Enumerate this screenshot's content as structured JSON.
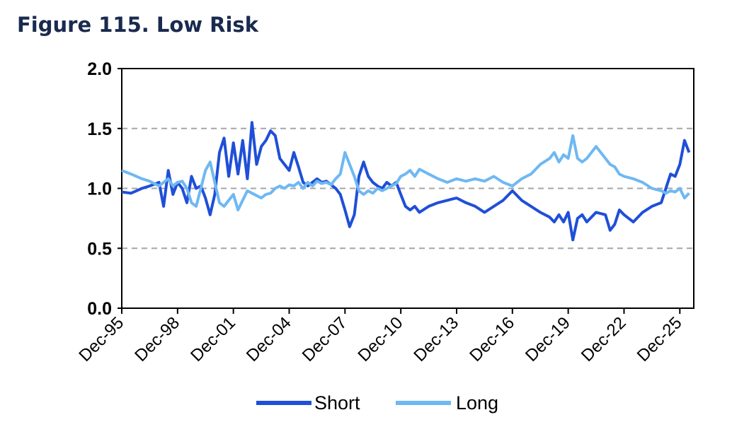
{
  "title": "Figure 115. Low Risk",
  "chart_data": {
    "type": "line",
    "xlabel": "",
    "ylabel": "",
    "xlim": [
      "1995-12",
      "2026-09"
    ],
    "ylim": [
      0,
      2
    ],
    "y_ticks": [
      "0.0",
      "0.5",
      "1.0",
      "1.5",
      "2.0"
    ],
    "x_ticks": [
      "Dec-95",
      "Dec-98",
      "Dec-01",
      "Dec-04",
      "Dec-07",
      "Dec-10",
      "Dec-13",
      "Dec-16",
      "Dec-19",
      "Dec-22",
      "Dec-25"
    ],
    "grid": "horizontal dashed",
    "legend": "bottom",
    "series": [
      {
        "name": "Short",
        "color": "#1f4fd8",
        "points": [
          [
            "1995-12",
            0.97
          ],
          [
            "1996-06",
            0.96
          ],
          [
            "1997-01",
            1.0
          ],
          [
            "1997-06",
            1.02
          ],
          [
            "1997-12",
            1.05
          ],
          [
            "1998-03",
            0.85
          ],
          [
            "1998-06",
            1.15
          ],
          [
            "1998-09",
            0.95
          ],
          [
            "1998-12",
            1.05
          ],
          [
            "1999-03",
            1.0
          ],
          [
            "1999-06",
            0.88
          ],
          [
            "1999-09",
            1.1
          ],
          [
            "1999-12",
            1.0
          ],
          [
            "2000-03",
            1.02
          ],
          [
            "2000-06",
            0.92
          ],
          [
            "2000-09",
            0.78
          ],
          [
            "2000-12",
            0.95
          ],
          [
            "2001-03",
            1.3
          ],
          [
            "2001-06",
            1.42
          ],
          [
            "2001-09",
            1.1
          ],
          [
            "2001-12",
            1.38
          ],
          [
            "2002-03",
            1.12
          ],
          [
            "2002-06",
            1.4
          ],
          [
            "2002-09",
            1.08
          ],
          [
            "2002-12",
            1.55
          ],
          [
            "2003-03",
            1.2
          ],
          [
            "2003-06",
            1.35
          ],
          [
            "2003-09",
            1.4
          ],
          [
            "2003-12",
            1.48
          ],
          [
            "2004-03",
            1.44
          ],
          [
            "2004-06",
            1.25
          ],
          [
            "2004-09",
            1.2
          ],
          [
            "2004-12",
            1.15
          ],
          [
            "2005-03",
            1.3
          ],
          [
            "2005-06",
            1.18
          ],
          [
            "2005-09",
            1.05
          ],
          [
            "2005-12",
            1.02
          ],
          [
            "2006-03",
            1.05
          ],
          [
            "2006-06",
            1.08
          ],
          [
            "2006-09",
            1.05
          ],
          [
            "2006-12",
            1.06
          ],
          [
            "2007-03",
            1.03
          ],
          [
            "2007-06",
            1.0
          ],
          [
            "2007-09",
            0.95
          ],
          [
            "2007-12",
            0.82
          ],
          [
            "2008-03",
            0.68
          ],
          [
            "2008-06",
            0.78
          ],
          [
            "2008-09",
            1.1
          ],
          [
            "2008-12",
            1.22
          ],
          [
            "2009-03",
            1.1
          ],
          [
            "2009-06",
            1.05
          ],
          [
            "2009-09",
            1.02
          ],
          [
            "2009-12",
            1.0
          ],
          [
            "2010-03",
            1.05
          ],
          [
            "2010-06",
            1.02
          ],
          [
            "2010-09",
            1.05
          ],
          [
            "2010-12",
            0.95
          ],
          [
            "2011-03",
            0.85
          ],
          [
            "2011-06",
            0.82
          ],
          [
            "2011-09",
            0.85
          ],
          [
            "2011-12",
            0.8
          ],
          [
            "2012-06",
            0.85
          ],
          [
            "2012-12",
            0.88
          ],
          [
            "2013-06",
            0.9
          ],
          [
            "2013-12",
            0.92
          ],
          [
            "2014-06",
            0.88
          ],
          [
            "2014-12",
            0.85
          ],
          [
            "2015-06",
            0.8
          ],
          [
            "2015-12",
            0.85
          ],
          [
            "2016-06",
            0.9
          ],
          [
            "2016-12",
            0.98
          ],
          [
            "2017-06",
            0.9
          ],
          [
            "2017-12",
            0.85
          ],
          [
            "2018-06",
            0.8
          ],
          [
            "2018-12",
            0.76
          ],
          [
            "2019-03",
            0.72
          ],
          [
            "2019-06",
            0.78
          ],
          [
            "2019-09",
            0.72
          ],
          [
            "2019-12",
            0.8
          ],
          [
            "2020-03",
            0.57
          ],
          [
            "2020-06",
            0.75
          ],
          [
            "2020-09",
            0.78
          ],
          [
            "2020-12",
            0.72
          ],
          [
            "2021-06",
            0.8
          ],
          [
            "2021-12",
            0.78
          ],
          [
            "2022-03",
            0.65
          ],
          [
            "2022-06",
            0.7
          ],
          [
            "2022-09",
            0.82
          ],
          [
            "2022-12",
            0.78
          ],
          [
            "2023-06",
            0.72
          ],
          [
            "2023-12",
            0.8
          ],
          [
            "2024-06",
            0.85
          ],
          [
            "2024-12",
            0.88
          ],
          [
            "2025-03",
            1.0
          ],
          [
            "2025-06",
            1.12
          ],
          [
            "2025-09",
            1.1
          ],
          [
            "2025-12",
            1.2
          ],
          [
            "2026-03",
            1.4
          ],
          [
            "2026-06",
            1.3
          ]
        ]
      },
      {
        "name": "Long",
        "color": "#6fb8f2",
        "points": [
          [
            "1995-12",
            1.15
          ],
          [
            "1996-06",
            1.12
          ],
          [
            "1997-01",
            1.08
          ],
          [
            "1997-06",
            1.06
          ],
          [
            "1997-12",
            1.02
          ],
          [
            "1998-03",
            1.05
          ],
          [
            "1998-06",
            1.08
          ],
          [
            "1998-09",
            1.02
          ],
          [
            "1998-12",
            1.05
          ],
          [
            "1999-03",
            1.06
          ],
          [
            "1999-06",
            1.0
          ],
          [
            "1999-09",
            0.88
          ],
          [
            "1999-12",
            0.85
          ],
          [
            "2000-03",
            1.0
          ],
          [
            "2000-06",
            1.15
          ],
          [
            "2000-09",
            1.22
          ],
          [
            "2000-12",
            1.05
          ],
          [
            "2001-03",
            0.88
          ],
          [
            "2001-06",
            0.85
          ],
          [
            "2001-09",
            0.9
          ],
          [
            "2001-12",
            0.95
          ],
          [
            "2002-03",
            0.82
          ],
          [
            "2002-06",
            0.9
          ],
          [
            "2002-09",
            0.98
          ],
          [
            "2002-12",
            0.96
          ],
          [
            "2003-03",
            0.94
          ],
          [
            "2003-06",
            0.92
          ],
          [
            "2003-09",
            0.95
          ],
          [
            "2003-12",
            0.96
          ],
          [
            "2004-03",
            1.0
          ],
          [
            "2004-06",
            1.02
          ],
          [
            "2004-09",
            1.0
          ],
          [
            "2004-12",
            1.03
          ],
          [
            "2005-03",
            1.02
          ],
          [
            "2005-06",
            1.05
          ],
          [
            "2005-09",
            1.0
          ],
          [
            "2005-12",
            1.05
          ],
          [
            "2006-03",
            1.02
          ],
          [
            "2006-06",
            1.06
          ],
          [
            "2006-09",
            1.04
          ],
          [
            "2006-12",
            1.05
          ],
          [
            "2007-03",
            1.03
          ],
          [
            "2007-06",
            1.08
          ],
          [
            "2007-09",
            1.12
          ],
          [
            "2007-12",
            1.3
          ],
          [
            "2008-03",
            1.2
          ],
          [
            "2008-06",
            1.1
          ],
          [
            "2008-09",
            0.98
          ],
          [
            "2008-12",
            0.95
          ],
          [
            "2009-03",
            0.98
          ],
          [
            "2009-06",
            0.96
          ],
          [
            "2009-09",
            1.0
          ],
          [
            "2009-12",
            0.98
          ],
          [
            "2010-03",
            1.0
          ],
          [
            "2010-06",
            1.02
          ],
          [
            "2010-09",
            1.04
          ],
          [
            "2010-12",
            1.1
          ],
          [
            "2011-03",
            1.12
          ],
          [
            "2011-06",
            1.15
          ],
          [
            "2011-09",
            1.1
          ],
          [
            "2011-12",
            1.16
          ],
          [
            "2012-06",
            1.12
          ],
          [
            "2012-12",
            1.08
          ],
          [
            "2013-06",
            1.05
          ],
          [
            "2013-12",
            1.08
          ],
          [
            "2014-06",
            1.06
          ],
          [
            "2014-12",
            1.08
          ],
          [
            "2015-06",
            1.06
          ],
          [
            "2015-12",
            1.1
          ],
          [
            "2016-06",
            1.05
          ],
          [
            "2016-12",
            1.02
          ],
          [
            "2017-06",
            1.08
          ],
          [
            "2017-12",
            1.12
          ],
          [
            "2018-06",
            1.2
          ],
          [
            "2018-12",
            1.25
          ],
          [
            "2019-03",
            1.3
          ],
          [
            "2019-06",
            1.22
          ],
          [
            "2019-09",
            1.28
          ],
          [
            "2019-12",
            1.25
          ],
          [
            "2020-03",
            1.44
          ],
          [
            "2020-06",
            1.25
          ],
          [
            "2020-09",
            1.22
          ],
          [
            "2020-12",
            1.25
          ],
          [
            "2021-06",
            1.35
          ],
          [
            "2021-12",
            1.25
          ],
          [
            "2022-03",
            1.2
          ],
          [
            "2022-06",
            1.18
          ],
          [
            "2022-09",
            1.12
          ],
          [
            "2022-12",
            1.1
          ],
          [
            "2023-06",
            1.08
          ],
          [
            "2023-12",
            1.05
          ],
          [
            "2024-06",
            1.0
          ],
          [
            "2024-12",
            0.98
          ],
          [
            "2025-03",
            0.96
          ],
          [
            "2025-06",
            0.98
          ],
          [
            "2025-09",
            0.97
          ],
          [
            "2025-12",
            1.0
          ],
          [
            "2026-03",
            0.92
          ],
          [
            "2026-06",
            0.96
          ]
        ]
      }
    ]
  }
}
